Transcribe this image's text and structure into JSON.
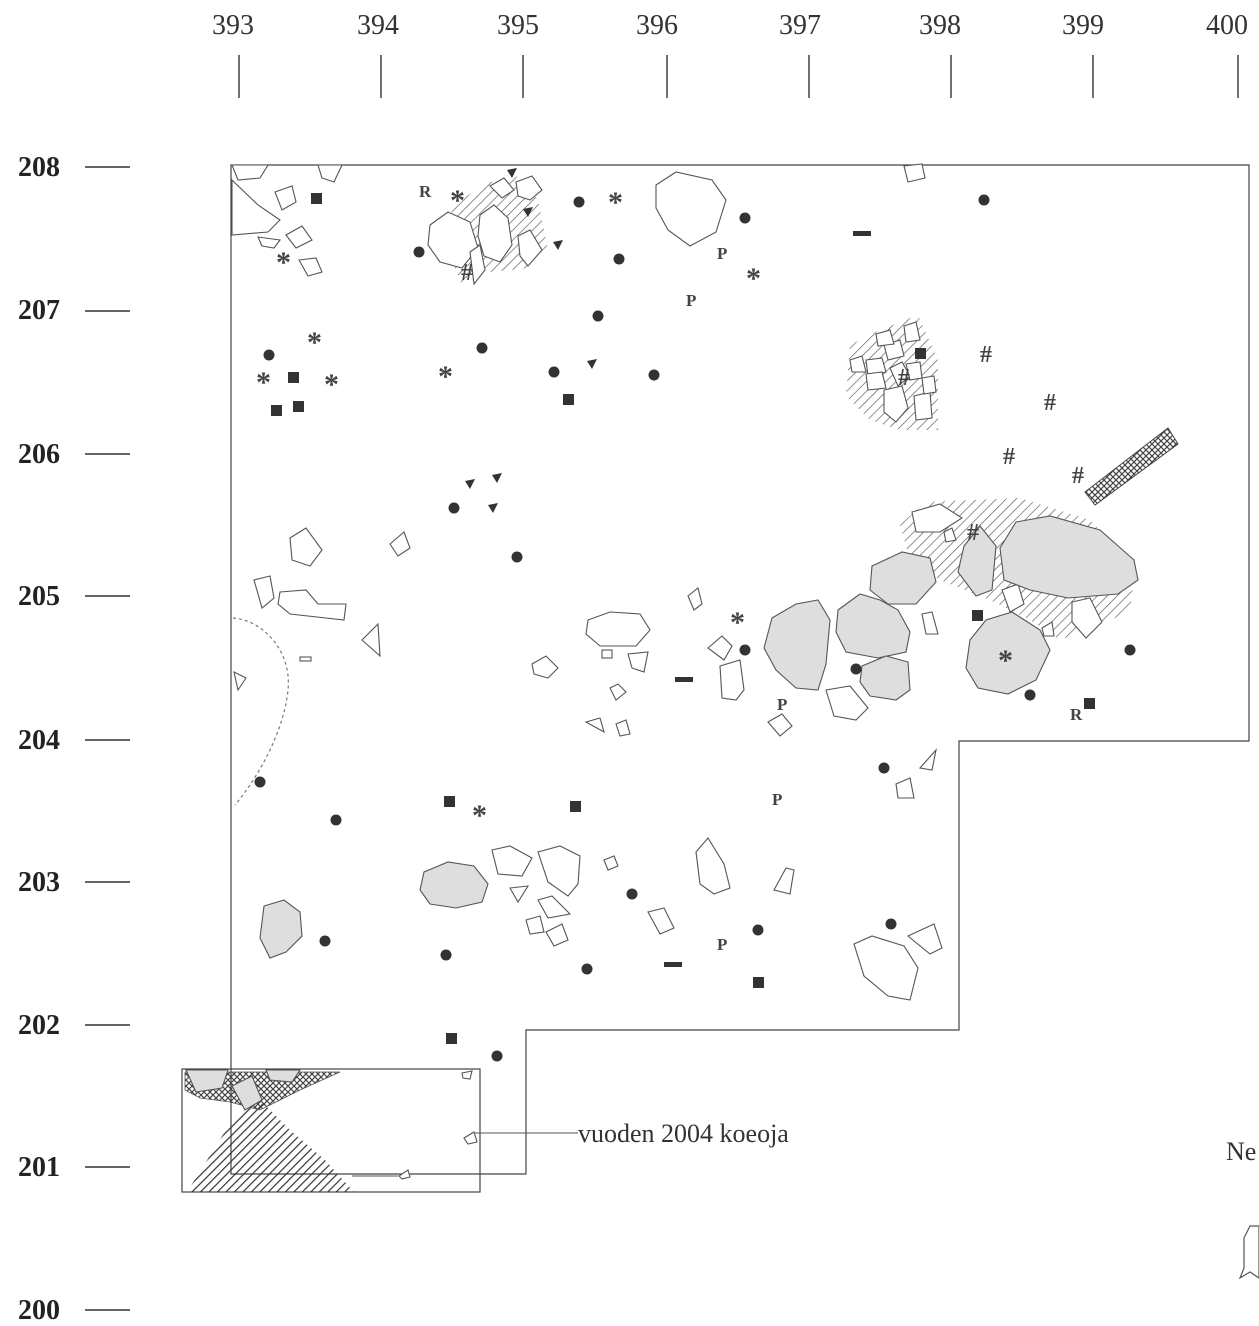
{
  "colors": {
    "ink": "#333333",
    "grey_fill": "#dedede",
    "background": "#ffffff"
  },
  "axes": {
    "x_ticks": [
      "393",
      "394",
      "395",
      "396",
      "397",
      "398",
      "399",
      "400"
    ],
    "y_ticks": [
      "208",
      "207",
      "206",
      "205",
      "204",
      "203",
      "202",
      "201",
      "200"
    ]
  },
  "annotation": {
    "test_pit_label": "vuoden 2004 koeoja"
  },
  "north_label": "Ne",
  "symbols": {
    "circle": "find-point-icon",
    "square": "find-square-icon",
    "triangle": "find-triangle-icon",
    "asterisk": "*",
    "hash": "#",
    "p": "P",
    "r": "R",
    "dash": "find-dash-icon"
  }
}
